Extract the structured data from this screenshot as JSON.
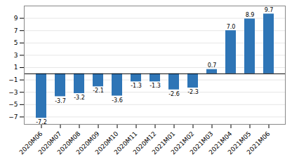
{
  "chart_data": {
    "type": "bar",
    "categories": [
      "2020M06",
      "2020M07",
      "2020M08",
      "2020M09",
      "2020M10",
      "2020M11",
      "2020M12",
      "2021M01",
      "2021M02",
      "2021M03",
      "2021M04",
      "2021M05",
      "2021M06"
    ],
    "values": [
      -7.2,
      -3.7,
      -3.2,
      -2.1,
      -3.6,
      -1.3,
      -1.3,
      -2.6,
      -2.3,
      0.7,
      7.0,
      8.9,
      9.7
    ],
    "value_labels": [
      "-7.2",
      "-3.7",
      "-3.2",
      "-2.1",
      "-3.6",
      "-1.3",
      "-1.3",
      "-2.6",
      "-2.3",
      "0.7",
      "7.0",
      "8.9",
      "9.7"
    ],
    "color": "#2E75B6",
    "ylim": [
      -8.2,
      11.0
    ],
    "yticks": [
      -7,
      -5,
      -3,
      -1,
      1,
      3,
      5,
      7,
      9
    ],
    "grid": true,
    "data_labels": true
  }
}
